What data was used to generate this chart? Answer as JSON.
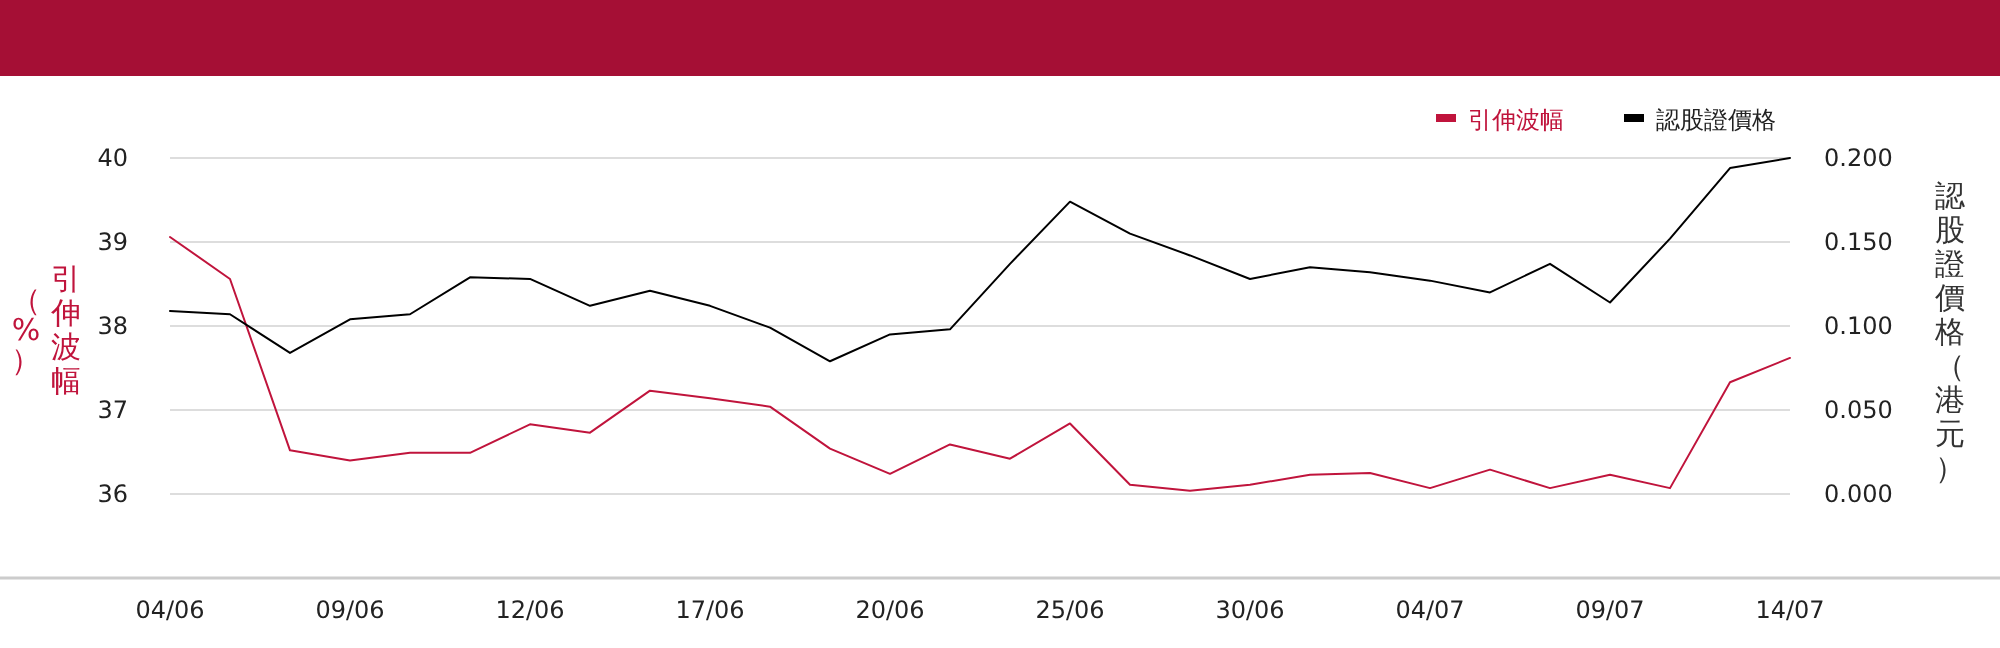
{
  "chart_data": {
    "type": "line",
    "categories": [
      "04/06",
      null,
      null,
      "09/06",
      null,
      null,
      "12/06",
      null,
      null,
      "17/06",
      null,
      null,
      "20/06",
      null,
      null,
      "25/06",
      null,
      null,
      "30/06",
      null,
      null,
      "04/07",
      null,
      null,
      "09/07",
      null,
      null,
      "14/07"
    ],
    "series": [
      {
        "name": "引伸波幅",
        "color": "#c0143c",
        "values": [
          39.06,
          38.56,
          36.52,
          36.4,
          36.49,
          36.49,
          36.83,
          36.73,
          37.23,
          37.14,
          37.04,
          36.54,
          36.24,
          36.59,
          36.42,
          36.84,
          36.11,
          36.04,
          36.11,
          36.23,
          36.25,
          36.07,
          36.29,
          36.07,
          36.23,
          36.07,
          37.33,
          37.62
        ]
      },
      {
        "name": "認股證價格",
        "color": "#000000",
        "axis": "y2",
        "values": [
          0.109,
          0.107,
          0.084,
          0.104,
          0.107,
          0.129,
          0.128,
          0.112,
          0.121,
          0.112,
          0.099,
          0.079,
          0.095,
          0.098,
          0.137,
          0.174,
          0.155,
          0.142,
          0.128,
          0.135,
          0.132,
          0.127,
          0.12,
          0.137,
          0.114,
          0.152,
          0.194,
          0.2
        ]
      }
    ],
    "ylabel": "引伸波幅（%）",
    "y2label": "認股證價格（港元）",
    "ylim": [
      35,
      40
    ],
    "yticks": [
      36,
      37,
      38,
      39,
      40
    ],
    "y2lim": [
      -0.05,
      0.2
    ],
    "y2ticks": [
      {
        "value": 0,
        "label": "0.000"
      },
      {
        "value": 0.05,
        "label": "0.050"
      },
      {
        "value": 0.1,
        "label": "0.100"
      },
      {
        "value": 0.15,
        "label": "0.150"
      },
      {
        "value": 0.2,
        "label": "0.200"
      }
    ],
    "grid": "y",
    "legend": "top right"
  }
}
